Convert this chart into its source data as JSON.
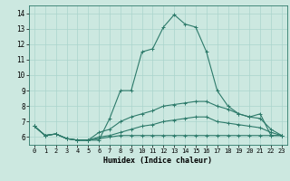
{
  "xlabel": "Humidex (Indice chaleur)",
  "bg_color": "#cce8e0",
  "grid_color": "#aad4cc",
  "line_color": "#2d7a6a",
  "xlim": [
    -0.5,
    23.5
  ],
  "ylim": [
    5.5,
    14.5
  ],
  "xticks": [
    0,
    1,
    2,
    3,
    4,
    5,
    6,
    7,
    8,
    9,
    10,
    11,
    12,
    13,
    14,
    15,
    16,
    17,
    18,
    19,
    20,
    21,
    22,
    23
  ],
  "yticks": [
    6,
    7,
    8,
    9,
    10,
    11,
    12,
    13,
    14
  ],
  "curves": [
    [
      6.7,
      6.1,
      6.2,
      5.9,
      5.8,
      5.8,
      5.8,
      7.2,
      9.0,
      9.0,
      11.5,
      11.7,
      13.1,
      13.9,
      13.3,
      13.1,
      11.5,
      9.0,
      8.0,
      7.5,
      7.3,
      7.5,
      6.1,
      6.1
    ],
    [
      6.7,
      6.1,
      6.2,
      5.9,
      5.8,
      5.8,
      6.3,
      6.5,
      7.0,
      7.3,
      7.5,
      7.7,
      8.0,
      8.1,
      8.2,
      8.3,
      8.3,
      8.0,
      7.8,
      7.5,
      7.3,
      7.2,
      6.5,
      6.1
    ],
    [
      6.7,
      6.1,
      6.2,
      5.9,
      5.8,
      5.8,
      6.0,
      6.1,
      6.3,
      6.5,
      6.7,
      6.8,
      7.0,
      7.1,
      7.2,
      7.3,
      7.3,
      7.0,
      6.9,
      6.8,
      6.7,
      6.6,
      6.3,
      6.1
    ],
    [
      6.7,
      6.1,
      6.2,
      5.9,
      5.8,
      5.8,
      5.9,
      6.0,
      6.1,
      6.1,
      6.1,
      6.1,
      6.1,
      6.1,
      6.1,
      6.1,
      6.1,
      6.1,
      6.1,
      6.1,
      6.1,
      6.1,
      6.1,
      6.1
    ]
  ]
}
